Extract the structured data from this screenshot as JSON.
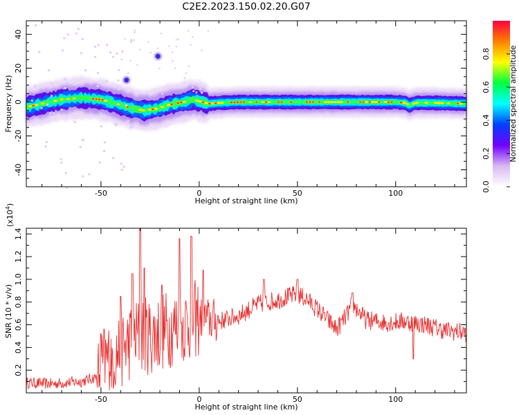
{
  "title": "C2E2.2023.150.02.20.G07",
  "chart_data": [
    {
      "type": "heatmap",
      "xlabel": "Height of straight line (km)",
      "ylabel": "Frequency (Hz)",
      "xlim": [
        -88,
        136
      ],
      "ylim": [
        -50,
        48
      ],
      "xticks": [
        -50,
        0,
        50,
        100
      ],
      "yticks": [
        -40,
        -20,
        0,
        20,
        40
      ],
      "grid": false,
      "colorbar": {
        "label": "Normalized spectral amplitude",
        "range": [
          0,
          1
        ],
        "ticks": [
          "0.0",
          "0.2",
          "0.4",
          "0.6",
          "0.8"
        ],
        "colors": [
          "#ffffff",
          "#d8b8f0",
          "#7000ff",
          "#0040ff",
          "#00ffff",
          "#00ff40",
          "#ffff00",
          "#ff8000",
          "#ff0040"
        ]
      },
      "center_line": {
        "x": [
          -88,
          -80,
          -70,
          -60,
          -50,
          -42,
          -35,
          -28,
          -22,
          -15,
          -8,
          -3,
          0,
          5,
          10,
          20,
          40,
          60,
          80,
          100,
          105,
          107,
          110,
          120,
          136
        ],
        "y": [
          -3,
          -1,
          1.5,
          2.5,
          1.5,
          -1,
          -3.5,
          -5,
          -4,
          -1.5,
          0,
          1.5,
          0.5,
          -1,
          -0.5,
          0,
          0,
          0,
          0,
          0,
          -0.5,
          -2,
          -0.5,
          -0.5,
          -1
        ]
      },
      "features": [
        {
          "x": -37,
          "y": 13,
          "label": ""
        },
        {
          "x": -21,
          "y": 27,
          "label": ""
        }
      ]
    },
    {
      "type": "line",
      "xlabel": "Height of straight line (km)",
      "ylabel": "SNR (10 * v/v)",
      "ylabel_multiplier": "(x10",
      "ylabel_exponent": "4",
      "ylabel_multiplier_close": ")",
      "xlim": [
        -88,
        136
      ],
      "ylim": [
        0,
        1.45
      ],
      "xticks": [
        -50,
        0,
        50,
        100
      ],
      "yticks": [
        0.2,
        0.4,
        0.6,
        0.8,
        1.0,
        1.2,
        1.4
      ],
      "ytick_labels": [
        "0.2",
        "0.4",
        "0.6",
        "0.8",
        "1.0",
        "1.2",
        "1.4"
      ],
      "color": "#e83030",
      "trend": {
        "x": [
          -88,
          -75,
          -60,
          -52,
          -48,
          -42,
          -36,
          -30,
          -24,
          -18,
          -12,
          -6,
          0,
          10,
          20,
          30,
          40,
          50,
          55,
          60,
          65,
          70,
          75,
          78,
          85,
          95,
          105,
          115,
          125,
          136
        ],
        "y": [
          0.09,
          0.08,
          0.1,
          0.14,
          0.28,
          0.35,
          0.44,
          0.52,
          0.5,
          0.55,
          0.58,
          0.62,
          0.66,
          0.63,
          0.68,
          0.78,
          0.82,
          0.87,
          0.82,
          0.74,
          0.65,
          0.56,
          0.68,
          0.78,
          0.64,
          0.62,
          0.63,
          0.6,
          0.55,
          0.53
        ]
      },
      "peaks": [
        {
          "x": -50,
          "y": 0.52
        },
        {
          "x": -40,
          "y": 0.85
        },
        {
          "x": -34,
          "y": 1.05
        },
        {
          "x": -30,
          "y": 1.45
        },
        {
          "x": -28,
          "y": 1.1
        },
        {
          "x": -19,
          "y": 0.95
        },
        {
          "x": -10,
          "y": 1.36
        },
        {
          "x": -4,
          "y": 1.38
        },
        {
          "x": 2,
          "y": 1.08
        },
        {
          "x": 33,
          "y": 1.0
        },
        {
          "x": 50,
          "y": 1.0
        },
        {
          "x": 78,
          "y": 0.88
        },
        {
          "x": 109,
          "y": 0.3
        }
      ]
    }
  ]
}
